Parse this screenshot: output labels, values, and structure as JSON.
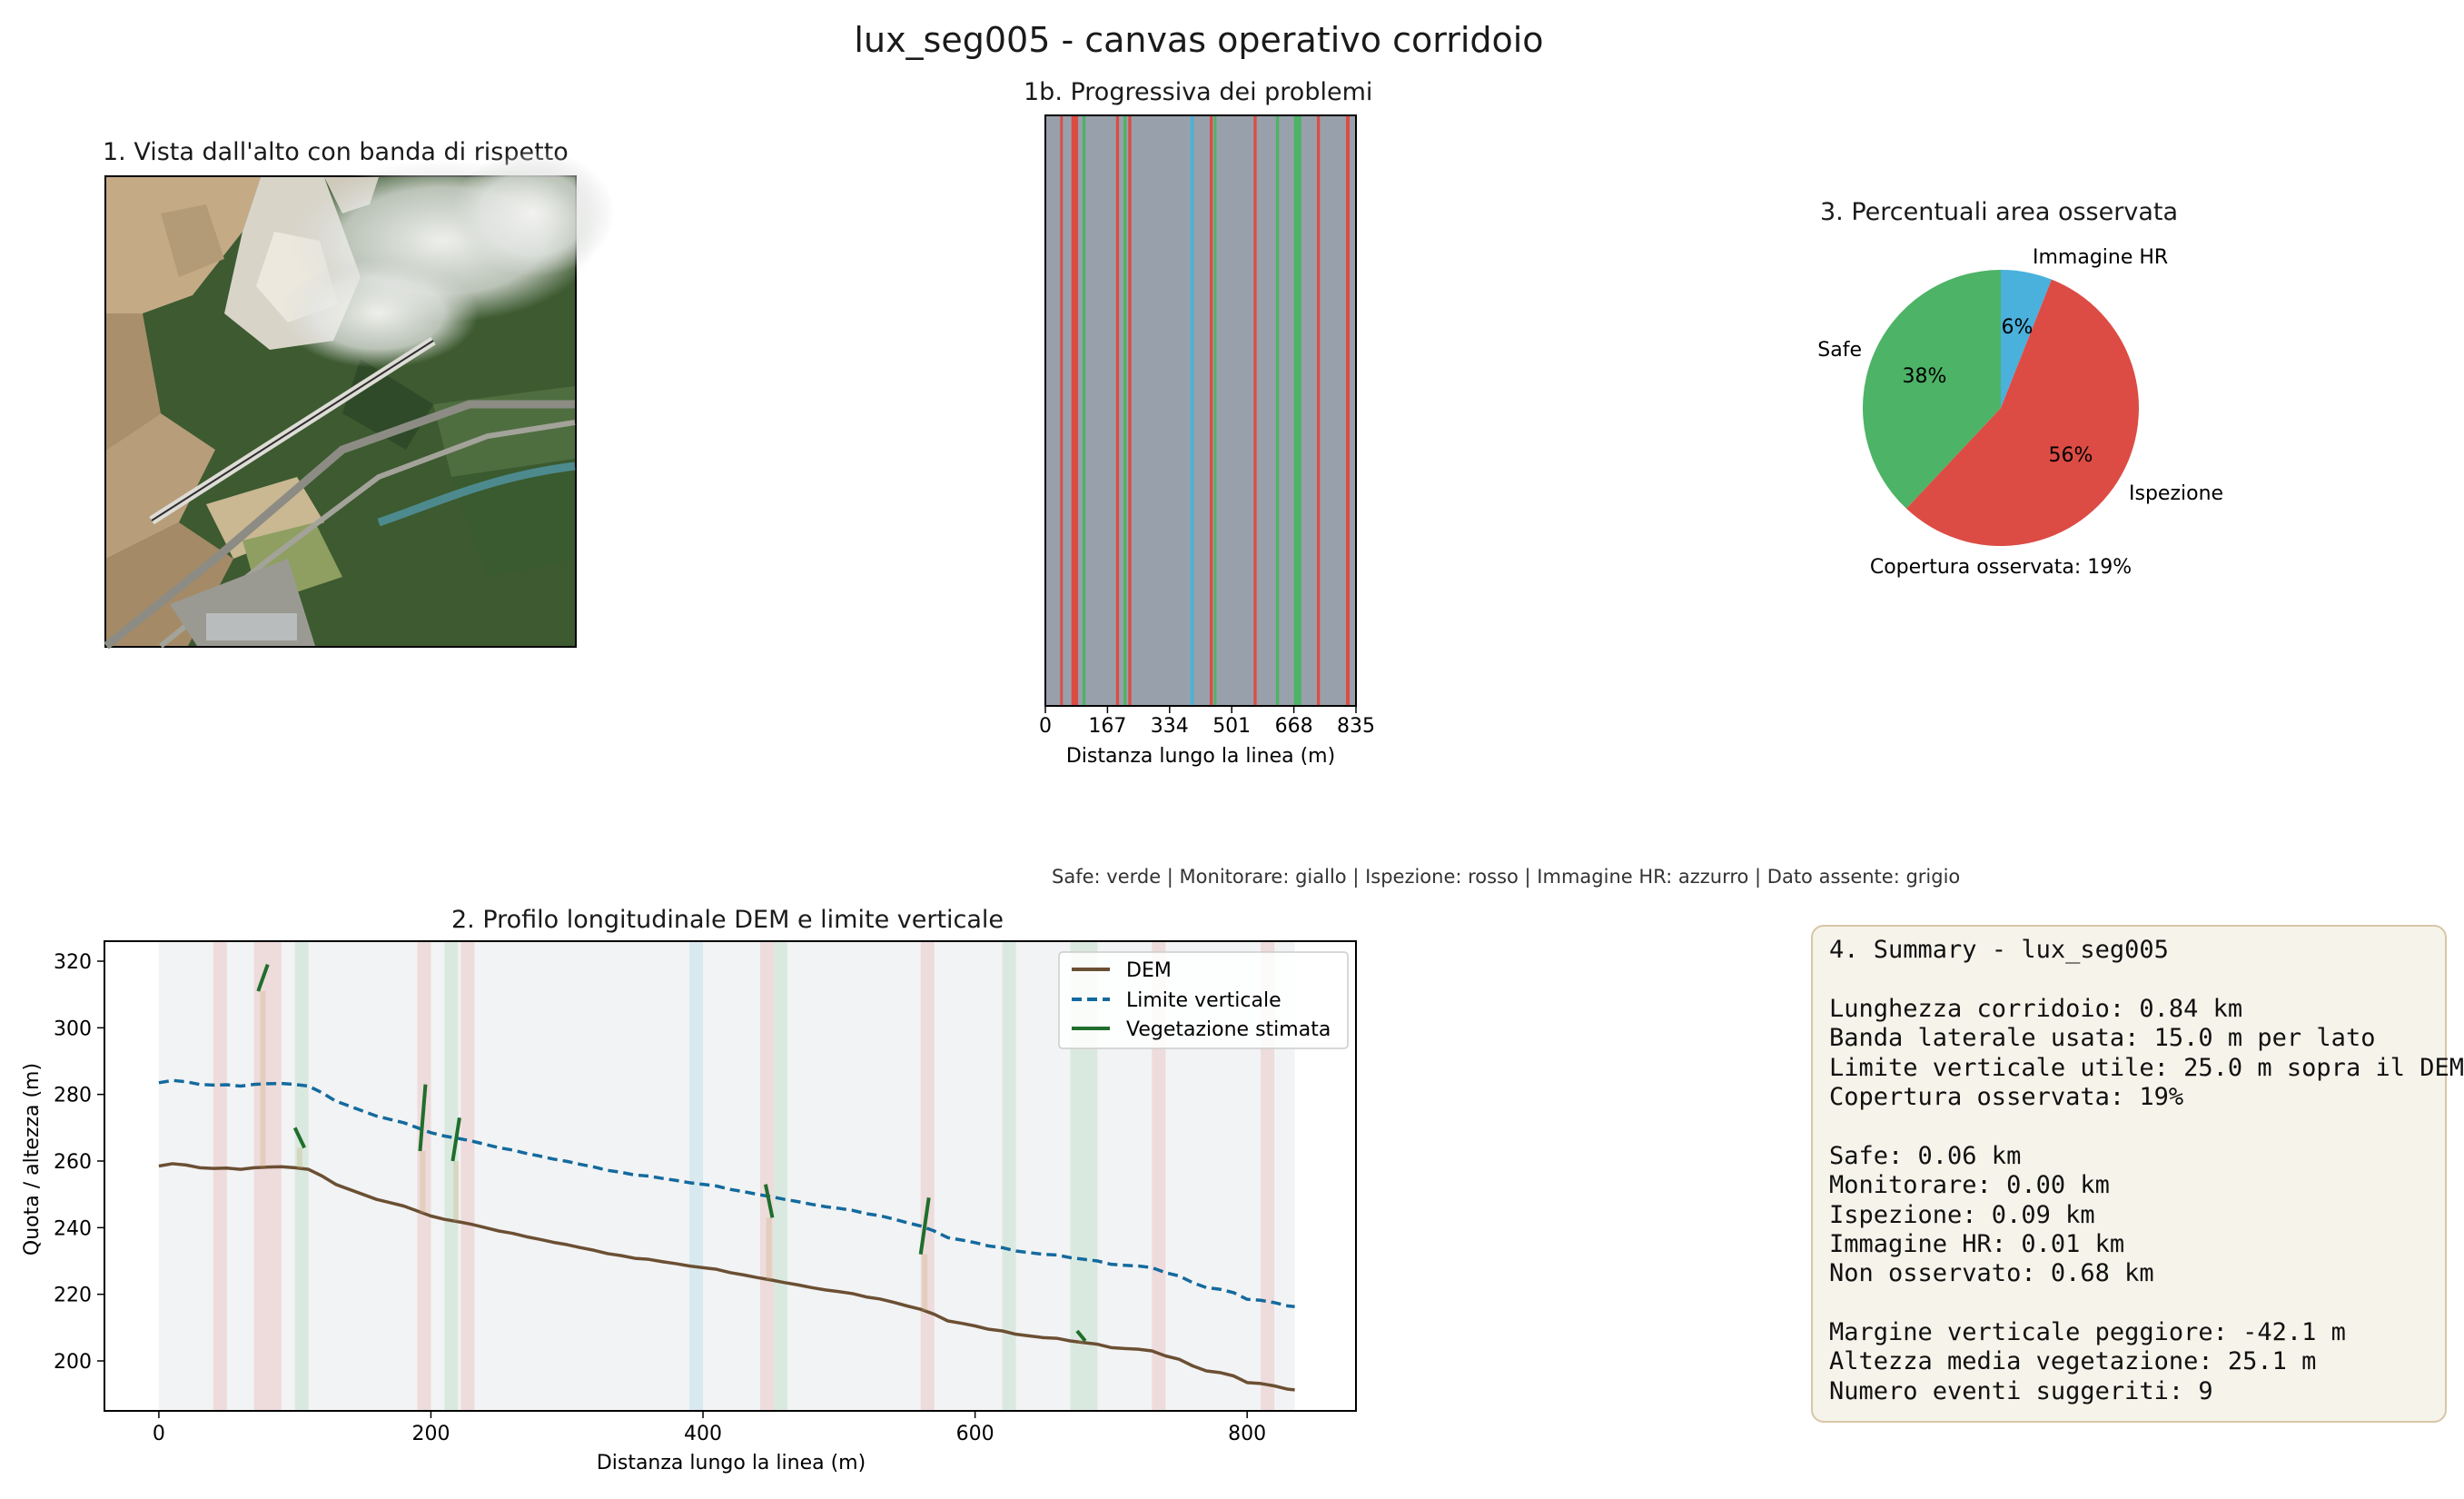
{
  "title": "lux_seg005 - canvas operativo corridoio",
  "panels": {
    "p1_title": "1. Vista dall'alto con banda di rispetto",
    "p1b_title": "1b. Progressiva dei problemi",
    "p2_title": "2. Profilo longitudinale DEM e limite verticale",
    "p3_title": "3. Percentuali area osservata"
  },
  "legend_note": "Safe: verde | Monitorare: giallo | Ispezione: rosso | Immagine HR: azzurro | Dato assente: grigio",
  "colors": {
    "safe": "#4db366",
    "inspect": "#dc4c44",
    "hr": "#4ab0dc",
    "missing": "#98a1ab",
    "dem": "#6b4f33",
    "limit": "#136a9e",
    "vegetation": "#1f6e2c",
    "summary_bg": "#f5f3ea"
  },
  "chart_data": [
    {
      "type": "heatmap",
      "name": "progressiva",
      "title": "1b. Progressiva dei problemi",
      "xlabel": "Distanza lungo la linea (m)",
      "xlim": [
        0,
        835
      ],
      "xticks": [
        0,
        167,
        334,
        501,
        668,
        835
      ],
      "background": "missing",
      "segments": [
        {
          "start": 40,
          "end": 47,
          "cls": "inspect"
        },
        {
          "start": 70,
          "end": 88,
          "cls": "inspect"
        },
        {
          "start": 100,
          "end": 108,
          "cls": "safe"
        },
        {
          "start": 190,
          "end": 198,
          "cls": "inspect"
        },
        {
          "start": 210,
          "end": 218,
          "cls": "safe"
        },
        {
          "start": 223,
          "end": 231,
          "cls": "inspect"
        },
        {
          "start": 390,
          "end": 399,
          "cls": "hr"
        },
        {
          "start": 442,
          "end": 450,
          "cls": "inspect"
        },
        {
          "start": 453,
          "end": 460,
          "cls": "safe"
        },
        {
          "start": 560,
          "end": 568,
          "cls": "inspect"
        },
        {
          "start": 620,
          "end": 628,
          "cls": "safe"
        },
        {
          "start": 668,
          "end": 688,
          "cls": "safe"
        },
        {
          "start": 730,
          "end": 738,
          "cls": "inspect"
        },
        {
          "start": 808,
          "end": 818,
          "cls": "inspect"
        }
      ]
    },
    {
      "type": "pie",
      "title": "3. Percentuali area osservata",
      "labels": [
        "Immagine HR",
        "Ispezione",
        "Safe"
      ],
      "values": [
        6,
        56,
        38
      ],
      "value_labels": [
        "6%",
        "56%",
        "38%"
      ],
      "colors": [
        "#4ab0dc",
        "#dc4c44",
        "#4db366"
      ],
      "footer": "Copertura osservata: 19%"
    },
    {
      "type": "line",
      "title": "2. Profilo longitudinale DEM e limite verticale",
      "xlabel": "Distanza lungo la linea (m)",
      "ylabel": "Quota / altezza (m)",
      "xlim": [
        -40,
        880
      ],
      "ylim": [
        185,
        326
      ],
      "xticks": [
        0,
        200,
        400,
        600,
        800
      ],
      "yticks": [
        200,
        220,
        240,
        260,
        280,
        300,
        320
      ],
      "legend_position": "top-right",
      "legend": [
        "DEM",
        "Limite verticale",
        "Vegetazione stimata"
      ],
      "background_span": [
        0,
        835
      ],
      "shaded_spans": [
        {
          "start": 40,
          "end": 50,
          "cls": "inspect"
        },
        {
          "start": 70,
          "end": 90,
          "cls": "inspect"
        },
        {
          "start": 100,
          "end": 110,
          "cls": "safe"
        },
        {
          "start": 190,
          "end": 200,
          "cls": "inspect"
        },
        {
          "start": 210,
          "end": 220,
          "cls": "safe"
        },
        {
          "start": 222,
          "end": 232,
          "cls": "inspect"
        },
        {
          "start": 390,
          "end": 400,
          "cls": "hr"
        },
        {
          "start": 442,
          "end": 452,
          "cls": "inspect"
        },
        {
          "start": 452,
          "end": 462,
          "cls": "safe"
        },
        {
          "start": 560,
          "end": 570,
          "cls": "inspect"
        },
        {
          "start": 620,
          "end": 630,
          "cls": "safe"
        },
        {
          "start": 670,
          "end": 690,
          "cls": "safe"
        },
        {
          "start": 730,
          "end": 740,
          "cls": "inspect"
        },
        {
          "start": 810,
          "end": 820,
          "cls": "inspect"
        }
      ],
      "series": [
        {
          "name": "DEM",
          "style": "solid",
          "x": [
            0,
            10,
            20,
            30,
            40,
            50,
            60,
            70,
            80,
            90,
            100,
            110,
            120,
            130,
            140,
            150,
            160,
            170,
            180,
            190,
            200,
            210,
            220,
            230,
            240,
            250,
            260,
            270,
            280,
            290,
            300,
            310,
            320,
            330,
            340,
            350,
            360,
            370,
            380,
            390,
            400,
            410,
            420,
            430,
            440,
            450,
            460,
            470,
            480,
            490,
            500,
            510,
            520,
            530,
            540,
            550,
            560,
            570,
            580,
            590,
            600,
            610,
            620,
            630,
            640,
            650,
            660,
            670,
            680,
            690,
            700,
            710,
            720,
            730,
            740,
            750,
            760,
            770,
            780,
            790,
            800,
            810,
            820,
            830,
            835
          ],
          "values": [
            258.5,
            259.2,
            258.8,
            258.0,
            257.8,
            257.9,
            257.5,
            258.0,
            258.2,
            258.3,
            258.0,
            257.5,
            255.5,
            253.0,
            251.5,
            250.0,
            248.5,
            247.5,
            246.5,
            245.0,
            243.5,
            242.5,
            241.8,
            241.0,
            240.0,
            239.0,
            238.3,
            237.3,
            236.5,
            235.6,
            234.9,
            234.0,
            233.2,
            232.2,
            231.6,
            230.8,
            230.5,
            229.8,
            229.2,
            228.5,
            228.0,
            227.5,
            226.5,
            225.8,
            225.0,
            224.3,
            223.5,
            222.8,
            222.0,
            221.3,
            220.8,
            220.2,
            219.2,
            218.6,
            217.6,
            216.5,
            215.5,
            214.0,
            212.0,
            211.3,
            210.5,
            209.5,
            209.0,
            208.0,
            207.5,
            207.0,
            206.8,
            206.0,
            205.5,
            205.0,
            204.0,
            203.7,
            203.5,
            203.0,
            201.5,
            200.5,
            198.5,
            197.0,
            196.5,
            195.5,
            193.5,
            193.2,
            192.5,
            191.5,
            191.3
          ]
        },
        {
          "name": "Limite verticale",
          "style": "dashed",
          "x": [
            0,
            10,
            20,
            30,
            40,
            50,
            60,
            70,
            80,
            90,
            100,
            110,
            120,
            130,
            140,
            150,
            160,
            170,
            180,
            190,
            200,
            210,
            220,
            230,
            240,
            250,
            260,
            270,
            280,
            290,
            300,
            310,
            320,
            330,
            340,
            350,
            360,
            370,
            380,
            390,
            400,
            410,
            420,
            430,
            440,
            450,
            460,
            470,
            480,
            490,
            500,
            510,
            520,
            530,
            540,
            550,
            560,
            570,
            580,
            590,
            600,
            610,
            620,
            630,
            640,
            650,
            660,
            670,
            680,
            690,
            700,
            710,
            720,
            730,
            740,
            750,
            760,
            770,
            780,
            790,
            800,
            810,
            820,
            830,
            835
          ],
          "values": [
            283.5,
            284.2,
            283.8,
            283.0,
            282.8,
            282.9,
            282.5,
            283.0,
            283.2,
            283.3,
            283.0,
            282.5,
            280.5,
            278.0,
            276.5,
            275.0,
            273.5,
            272.5,
            271.5,
            270.0,
            268.5,
            267.5,
            266.8,
            266.0,
            265.0,
            264.0,
            263.3,
            262.3,
            261.5,
            260.6,
            259.9,
            259.0,
            258.2,
            257.2,
            256.6,
            255.8,
            255.5,
            254.8,
            254.2,
            253.5,
            253.0,
            252.5,
            251.5,
            250.8,
            250.0,
            249.3,
            248.5,
            247.8,
            247.0,
            246.3,
            245.8,
            245.2,
            244.2,
            243.6,
            242.6,
            241.5,
            240.5,
            239.0,
            237.0,
            236.3,
            235.5,
            234.5,
            234.0,
            233.0,
            232.5,
            232.0,
            231.8,
            231.0,
            230.5,
            230.0,
            229.0,
            228.7,
            228.5,
            228.0,
            226.5,
            225.5,
            223.5,
            222.0,
            221.5,
            220.5,
            218.5,
            218.2,
            217.5,
            216.5,
            216.3
          ]
        }
      ],
      "vegetation": [
        {
          "x0": 73,
          "y0": 311,
          "x1": 80,
          "y1": 319
        },
        {
          "x0": 100,
          "y0": 270,
          "x1": 107,
          "y1": 264
        },
        {
          "x0": 192,
          "y0": 263,
          "x1": 196,
          "y1": 283
        },
        {
          "x0": 216,
          "y0": 260,
          "x1": 221,
          "y1": 273
        },
        {
          "x0": 446,
          "y0": 253,
          "x1": 451,
          "y1": 243
        },
        {
          "x0": 560,
          "y0": 232,
          "x1": 566,
          "y1": 249
        },
        {
          "x0": 675,
          "y0": 209,
          "x1": 681,
          "y1": 206
        }
      ]
    }
  ],
  "summary": {
    "lines": [
      "4. Summary - lux_seg005",
      "",
      "Lunghezza corridoio: 0.84 km",
      "Banda laterale usata: 15.0 m per lato",
      "Limite verticale utile: 25.0 m sopra il DEM",
      "Copertura osservata: 19%",
      "",
      "Safe: 0.06 km",
      "Monitorare: 0.00 km",
      "Ispezione: 0.09 km",
      "Immagine HR: 0.01 km",
      "Non osservato: 0.68 km",
      "",
      "Margine verticale peggiore: -42.1 m",
      "Altezza media vegetazione: 25.1 m",
      "Numero eventi suggeriti: 9"
    ]
  }
}
